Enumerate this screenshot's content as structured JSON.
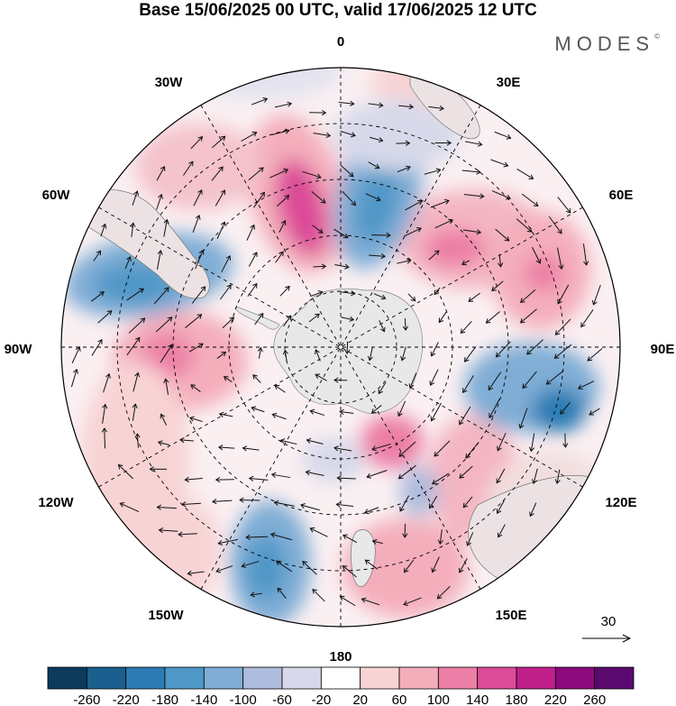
{
  "title": "Base 15/06/2025 00 UTC, valid 17/06/2025 12 UTC",
  "brand": "MODES",
  "brand_mark": "©",
  "longitude_labels": {
    "lon_0": "0",
    "lon_30E": "30E",
    "lon_60E": "60E",
    "lon_90E": "90E",
    "lon_120E": "120E",
    "lon_150E": "150E",
    "lon_180": "180",
    "lon_150W": "150W",
    "lon_120W": "120W",
    "lon_90W": "90W",
    "lon_60W": "60W",
    "lon_30W": "30W"
  },
  "reference_vector": {
    "label": "30"
  },
  "colorbar": {
    "labels": [
      "-260",
      "-220",
      "-180",
      "-140",
      "-100",
      "-60",
      "-20",
      "20",
      "60",
      "100",
      "140",
      "180",
      "220",
      "260"
    ],
    "colors": [
      "#0c3b5c",
      "#1a5f8e",
      "#2c7bb4",
      "#4f97c7",
      "#7fadd5",
      "#aebcdd",
      "#d7d9ea",
      "#ffffff",
      "#f8d3d4",
      "#f4aebb",
      "#ec7fa6",
      "#dc4c98",
      "#c01f8a",
      "#8c0a7c",
      "#5a0a6e"
    ]
  },
  "colors": {
    "land": "#e8e8e8",
    "grid": "#000000"
  }
}
